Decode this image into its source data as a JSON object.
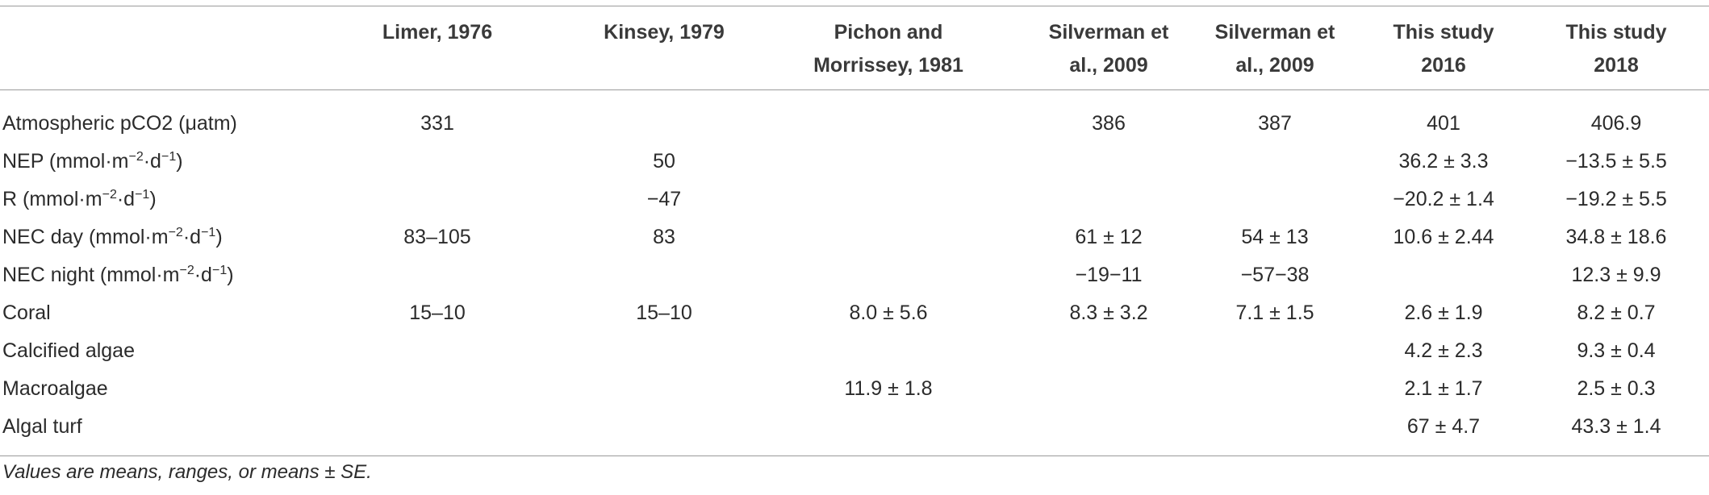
{
  "table": {
    "header": [
      null,
      "Limer, 1976",
      "Kinsey, 1979",
      "Pichon and Morrissey, 1981",
      "Silverman et al., 2009",
      "Silverman et al., 2009",
      "This study 2016",
      "This study 2018"
    ],
    "rows": [
      {
        "label_parts": [
          "Atmospheric pCO2 (μatm)"
        ],
        "cells": [
          "331",
          null,
          null,
          "386",
          "387",
          "401",
          "406.9"
        ]
      },
      {
        "label_parts": [
          "NEP (mmol·m",
          "−2",
          "·d",
          "−1",
          ")"
        ],
        "cells": [
          null,
          "50",
          null,
          null,
          null,
          "36.2 ± 3.3",
          "−13.5 ± 5.5"
        ]
      },
      {
        "label_parts": [
          "R (mmol·m",
          "−2",
          "·d",
          "−1",
          ")"
        ],
        "cells": [
          null,
          "−47",
          null,
          null,
          null,
          "−20.2 ± 1.4",
          "−19.2 ± 5.5"
        ]
      },
      {
        "label_parts": [
          "NEC day (mmol·m",
          "−2",
          "·d",
          "−1",
          ")"
        ],
        "cells": [
          "83–105",
          "83",
          null,
          "61 ± 12",
          "54 ± 13",
          "10.6 ± 2.44",
          "34.8 ± 18.6"
        ]
      },
      {
        "label_parts": [
          "NEC night (mmol·m",
          "−2",
          "·d",
          "−1",
          ")"
        ],
        "cells": [
          null,
          null,
          null,
          "−19−11",
          "−57−38",
          null,
          "12.3 ± 9.9"
        ]
      },
      {
        "label_parts": [
          "Coral"
        ],
        "cells": [
          "15–10",
          "15–10",
          "8.0 ± 5.6",
          "8.3 ± 3.2",
          "7.1 ± 1.5",
          "2.6 ± 1.9",
          "8.2 ± 0.7"
        ]
      },
      {
        "label_parts": [
          "Calcified algae"
        ],
        "cells": [
          null,
          null,
          null,
          null,
          null,
          "4.2 ± 2.3",
          "9.3 ± 0.4"
        ]
      },
      {
        "label_parts": [
          "Macroalgae"
        ],
        "cells": [
          null,
          null,
          "11.9 ± 1.8",
          null,
          null,
          "2.1 ± 1.7",
          "2.5 ± 0.3"
        ]
      },
      {
        "label_parts": [
          "Algal turf"
        ],
        "cells": [
          null,
          null,
          null,
          null,
          null,
          "67 ± 4.7",
          "43.3 ± 1.4"
        ]
      }
    ],
    "footnote": "Values are means, ranges, or means ± SE."
  }
}
